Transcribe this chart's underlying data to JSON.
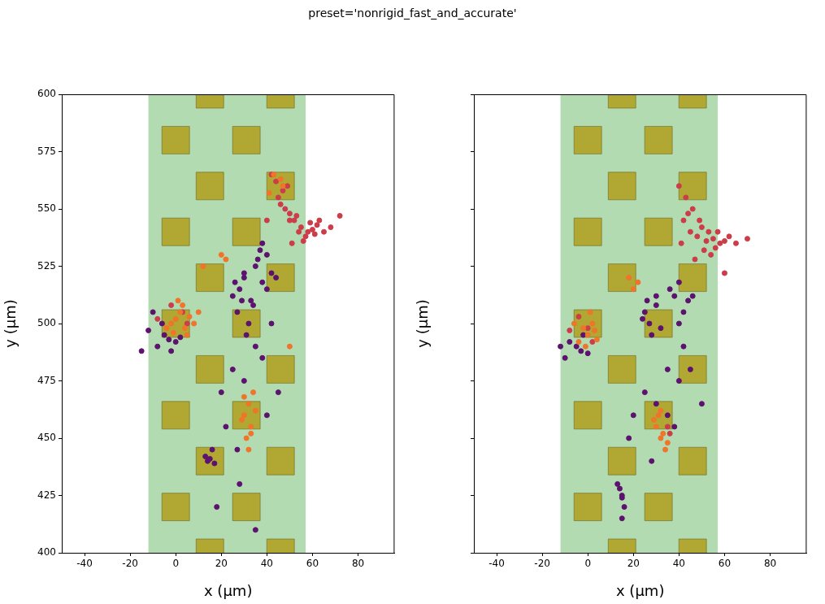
{
  "chart_data": [
    {
      "type": "scatter",
      "title": "preset='nonrigid_fast_and_accurate'",
      "xlabel": "x (μm)",
      "ylabel": "y (μm)",
      "xlim": [
        -50,
        96
      ],
      "ylim": [
        400,
        600
      ],
      "xticks": [
        -40,
        -20,
        0,
        20,
        40,
        60,
        80
      ],
      "yticks": [
        400,
        425,
        450,
        475,
        500,
        525,
        550,
        575,
        600
      ],
      "grid": false,
      "marker": "circle",
      "bands": [
        {
          "axis": "x",
          "from": -12,
          "to": 57,
          "color": "#b2dbb2"
        }
      ],
      "series": [
        {
          "color": "#b0a832",
          "marker": "square",
          "x": [
            0,
            0,
            0,
            0,
            0,
            31,
            31,
            31,
            31,
            31,
            15,
            15,
            15,
            15,
            15,
            15,
            46,
            46,
            46,
            46,
            46,
            46
          ],
          "values": [
            580,
            540,
            500,
            460,
            420,
            580,
            540,
            500,
            460,
            420,
            600,
            560,
            520,
            480,
            440,
            400,
            600,
            560,
            520,
            480,
            440,
            400
          ]
        },
        {
          "color": "#5c126e",
          "x": [
            30,
            35,
            38,
            40,
            33,
            28,
            25,
            27,
            32,
            36,
            42,
            38,
            30,
            26,
            34,
            40,
            37,
            29,
            31,
            44,
            -5,
            -8,
            -3,
            -12,
            -15,
            -2,
            0,
            -10,
            2,
            -6,
            14,
            15,
            17,
            13,
            16,
            20,
            25,
            35,
            45,
            28,
            22,
            38,
            42,
            30,
            18,
            35,
            27,
            40
          ],
          "values": [
            520,
            525,
            518,
            530,
            510,
            515,
            512,
            505,
            500,
            528,
            522,
            535,
            522,
            518,
            508,
            515,
            532,
            510,
            495,
            520,
            495,
            490,
            493,
            497,
            488,
            488,
            492,
            505,
            494,
            500,
            440,
            441,
            439,
            442,
            445,
            470,
            480,
            490,
            470,
            430,
            455,
            485,
            500,
            475,
            420,
            410,
            445,
            460
          ]
        },
        {
          "color": "#cc3d4a",
          "x": [
            45,
            48,
            50,
            52,
            55,
            58,
            60,
            62,
            65,
            47,
            53,
            57,
            44,
            42,
            46,
            50,
            54,
            63,
            68,
            72,
            56,
            49,
            51,
            59,
            61,
            3,
            -2,
            5,
            -8,
            40
          ],
          "values": [
            555,
            550,
            548,
            545,
            542,
            540,
            541,
            543,
            540,
            558,
            547,
            538,
            562,
            565,
            552,
            545,
            540,
            545,
            542,
            547,
            536,
            560,
            535,
            544,
            539,
            505,
            508,
            500,
            502,
            545
          ]
        },
        {
          "color": "#f0742a",
          "x": [
            0,
            2,
            4,
            -2,
            3,
            5,
            1,
            -1,
            6,
            8,
            30,
            32,
            33,
            31,
            34,
            29,
            32,
            35,
            30,
            33,
            41,
            47,
            43,
            46,
            20,
            22,
            50,
            12,
            -4,
            10
          ],
          "values": [
            502,
            505,
            498,
            500,
            508,
            495,
            510,
            496,
            503,
            500,
            460,
            465,
            455,
            450,
            470,
            458,
            445,
            462,
            468,
            452,
            557,
            560,
            565,
            563,
            530,
            528,
            490,
            525,
            498,
            505
          ]
        }
      ]
    },
    {
      "type": "scatter",
      "xlabel": "x (μm)",
      "ylabel": "y (μm)",
      "xlim": [
        -50,
        96
      ],
      "ylim": [
        400,
        600
      ],
      "xticks": [
        -40,
        -20,
        0,
        20,
        40,
        60,
        80
      ],
      "yticks": [
        400,
        425,
        450,
        475,
        500,
        525,
        550,
        575,
        600
      ],
      "grid": false,
      "marker": "circle",
      "tick_labels": "x",
      "bands": [
        {
          "axis": "x",
          "from": -12,
          "to": 57,
          "color": "#b2dbb2"
        }
      ],
      "series": [
        {
          "color": "#b0a832",
          "marker": "square",
          "x": [
            0,
            0,
            0,
            0,
            0,
            31,
            31,
            31,
            31,
            31,
            15,
            15,
            15,
            15,
            15,
            15,
            46,
            46,
            46,
            46,
            46,
            46
          ],
          "values": [
            580,
            540,
            500,
            460,
            420,
            580,
            540,
            500,
            460,
            420,
            600,
            560,
            520,
            480,
            440,
            400,
            600,
            560,
            520,
            480,
            440,
            400
          ]
        },
        {
          "color": "#5c126e",
          "x": [
            38,
            40,
            42,
            44,
            36,
            40,
            46,
            25,
            27,
            30,
            28,
            32,
            24,
            26,
            30,
            -5,
            -3,
            -8,
            -10,
            -2,
            -12,
            0,
            14,
            15,
            16,
            13,
            15,
            25,
            30,
            35,
            40,
            45,
            20,
            28,
            35,
            42,
            38,
            50,
            18,
            15
          ],
          "values": [
            512,
            518,
            505,
            510,
            515,
            500,
            512,
            505,
            500,
            508,
            495,
            498,
            502,
            510,
            512,
            490,
            488,
            492,
            485,
            495,
            490,
            487,
            428,
            424,
            420,
            430,
            425,
            470,
            465,
            460,
            475,
            480,
            460,
            440,
            480,
            490,
            455,
            465,
            450,
            415
          ]
        },
        {
          "color": "#cc3d4a",
          "x": [
            42,
            45,
            48,
            50,
            52,
            55,
            58,
            44,
            46,
            53,
            56,
            60,
            62,
            47,
            49,
            51,
            43,
            54,
            57,
            65,
            70,
            41,
            -4,
            -8,
            0,
            2,
            36,
            35,
            60,
            40
          ],
          "values": [
            545,
            540,
            538,
            542,
            536,
            537,
            535,
            548,
            550,
            540,
            533,
            536,
            538,
            528,
            545,
            532,
            555,
            530,
            540,
            535,
            537,
            535,
            503,
            497,
            498,
            492,
            452,
            455,
            522,
            560
          ]
        },
        {
          "color": "#f0742a",
          "x": [
            -2,
            0,
            2,
            -4,
            1,
            3,
            -1,
            4,
            30,
            32,
            34,
            31,
            33,
            35,
            29,
            32,
            22,
            20,
            18,
            -6
          ],
          "values": [
            498,
            495,
            500,
            492,
            505,
            497,
            490,
            493,
            455,
            450,
            445,
            460,
            452,
            448,
            458,
            462,
            518,
            515,
            520,
            500
          ]
        }
      ]
    }
  ]
}
